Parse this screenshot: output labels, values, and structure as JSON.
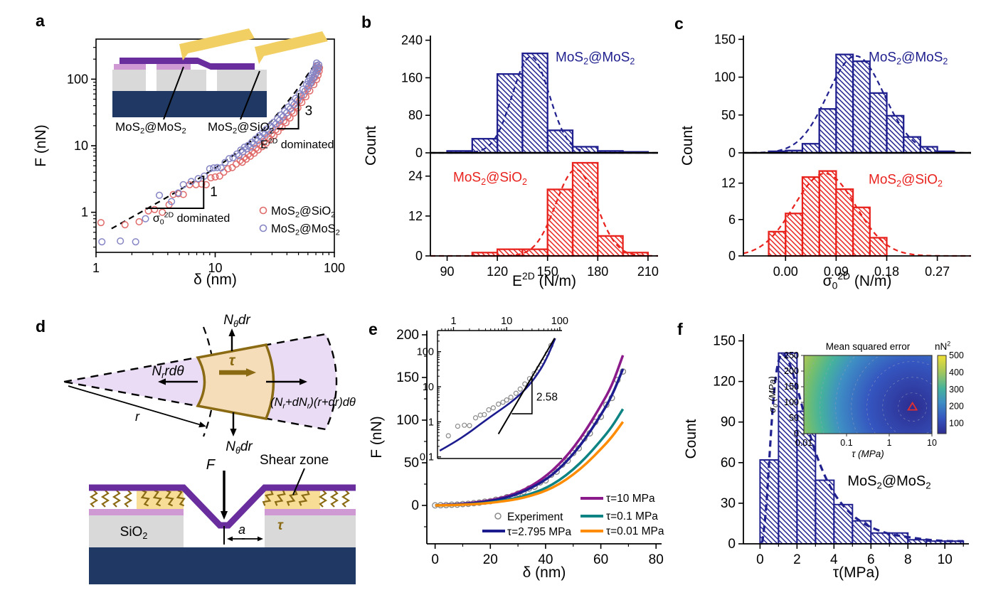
{
  "panels": {
    "a": {
      "label": "a"
    },
    "b": {
      "label": "b"
    },
    "c": {
      "label": "c"
    },
    "d": {
      "label": "d"
    },
    "e": {
      "label": "e"
    },
    "f": {
      "label": "f"
    }
  },
  "chart_data": {
    "a": {
      "type": "scatter",
      "xscale": "log",
      "yscale": "log",
      "xlabel": "δ (nm)",
      "ylabel": "F (nN)",
      "xlim": [
        1,
        100
      ],
      "ylim": [
        0.25,
        400
      ],
      "xticks": [
        1,
        10,
        100
      ],
      "yticks": [
        1,
        10,
        100
      ],
      "series": [
        {
          "name": "MoS_{2}@SiO_{2}",
          "color": "#e06a6a",
          "points": [
            [
              1.1,
              0.7
            ],
            [
              1.75,
              0.65
            ],
            [
              2.3,
              0.72
            ],
            [
              2.75,
              1.05
            ],
            [
              3.1,
              1.1
            ],
            [
              3.6,
              1.0
            ],
            [
              4.1,
              1.3
            ],
            [
              4.45,
              1.85
            ],
            [
              4.9,
              1.9
            ],
            [
              5.4,
              1.85
            ],
            [
              6.1,
              2.6
            ],
            [
              6.9,
              2.6
            ],
            [
              7.7,
              2.65
            ],
            [
              8.4,
              2.6
            ],
            [
              9.2,
              3.3
            ],
            [
              10,
              3.4
            ],
            [
              10.9,
              3.5
            ],
            [
              11.8,
              4.0
            ],
            [
              12.8,
              4.5
            ],
            [
              13.9,
              4.7
            ],
            [
              15,
              5.3
            ],
            [
              16.2,
              6.0
            ],
            [
              17.5,
              6.7
            ],
            [
              18.9,
              7.4
            ],
            [
              20.4,
              8.2
            ],
            [
              22,
              9.2
            ],
            [
              23.8,
              10.3
            ],
            [
              25.7,
              11.6
            ],
            [
              27.7,
              13.2
            ],
            [
              29.9,
              15.1
            ],
            [
              32.3,
              17.4
            ],
            [
              34.9,
              20.2
            ],
            [
              37.7,
              23.6
            ],
            [
              40.7,
              27.8
            ],
            [
              43.9,
              33
            ],
            [
              47.4,
              39.5
            ],
            [
              51.2,
              47.6
            ],
            [
              55.3,
              57.9
            ],
            [
              59.7,
              71
            ],
            [
              64.5,
              88
            ],
            [
              68,
              105
            ],
            [
              70,
              122
            ],
            [
              71.5,
              140
            ],
            [
              72,
              158
            ]
          ]
        },
        {
          "name": "MoS_{2}@MoS_{2}",
          "color": "#8585c5",
          "points": [
            [
              1.12,
              0.36
            ],
            [
              1.6,
              0.37
            ],
            [
              2.15,
              0.36
            ],
            [
              2.6,
              0.8
            ],
            [
              3.4,
              1.8
            ],
            [
              4.3,
              1.45
            ],
            [
              4.9,
              1.95
            ],
            [
              5.4,
              2.6
            ],
            [
              6.3,
              2.9
            ],
            [
              7.2,
              3.2
            ],
            [
              8.1,
              3.5
            ],
            [
              9,
              4.5
            ],
            [
              9.7,
              4.65
            ],
            [
              10.4,
              4.7
            ],
            [
              11.2,
              4.65
            ],
            [
              12.1,
              5.6
            ],
            [
              13.1,
              6.4
            ],
            [
              14.1,
              6.6
            ],
            [
              15.2,
              7.5
            ],
            [
              16.4,
              8.6
            ],
            [
              17.6,
              9.5
            ],
            [
              18.9,
              10.1
            ],
            [
              20.3,
              11.3
            ],
            [
              21.8,
              12.6
            ],
            [
              23.4,
              14.1
            ],
            [
              25.1,
              15.8
            ],
            [
              26.9,
              17.7
            ],
            [
              28.9,
              19.9
            ],
            [
              31,
              22.5
            ],
            [
              33.3,
              25.5
            ],
            [
              35.7,
              29
            ],
            [
              38.3,
              33.2
            ],
            [
              41.1,
              38.2
            ],
            [
              44.1,
              44.2
            ],
            [
              47.3,
              51.4
            ],
            [
              50.8,
              60.1
            ],
            [
              54.5,
              70.7
            ],
            [
              58.5,
              83.5
            ],
            [
              60.4,
              93
            ],
            [
              62.5,
              103
            ],
            [
              64.7,
              115
            ],
            [
              66.9,
              128
            ],
            [
              69.2,
              143
            ],
            [
              70.5,
              160
            ],
            [
              71,
              175
            ]
          ]
        }
      ],
      "fit": {
        "style": "dashed",
        "a1": 0.42,
        "a3": 0.00043,
        "range": [
          1.35,
          72
        ]
      },
      "annotations": {
        "slope1": {
          "label": "1",
          "h": [
            [
              2.6,
              1.15
            ],
            [
              8,
              1.15
            ]
          ],
          "v": [
            [
              8,
              1.15
            ],
            [
              8,
              3.55
            ]
          ]
        },
        "slope3": {
          "label": "3",
          "h": [
            [
              33,
              18
            ],
            [
              50,
              18
            ]
          ],
          "v": [
            [
              50,
              18
            ],
            [
              50,
              62
            ]
          ]
        },
        "sigma_label": {
          "text": "σ_{0}^{2D} dominated",
          "x": 3.0,
          "y": 0.72
        },
        "e_label": {
          "text": "E^{2D} dominated",
          "x": 24,
          "y": 9.2
        }
      },
      "inset_labels": {
        "left": "MoS_{2}@MoS_{2}",
        "right": "MoS_{2}@SiO_{2}"
      },
      "inset_colors": {
        "substrate": "#1f3864",
        "sio2": "#d9d9d9",
        "mos2_top": "#6a2d9e",
        "mos2_bottom": "#cf9ad4",
        "cantilever": "#f2cf63"
      }
    },
    "b": {
      "type": "histogram-pair",
      "xlabel": "E^{2D} (N/m)",
      "ylabel": "Count",
      "xlim": [
        80,
        216
      ],
      "xticks": {
        "values": [
          90,
          120,
          150,
          180,
          210
        ],
        "labels": [
          "90",
          "120",
          "150",
          "180",
          "210"
        ]
      },
      "top": {
        "name": "MoS_{2}@MoS_{2}",
        "color": "#20208f",
        "bin_start": 90,
        "bin_width": 15,
        "counts": [
          4,
          30,
          168,
          212,
          48,
          13,
          4,
          2
        ],
        "ylim": [
          0,
          250
        ],
        "yticks": [
          0,
          80,
          160,
          240
        ],
        "gauss": {
          "mu": 140,
          "sigma": 11,
          "amp": 205
        }
      },
      "bottom": {
        "name": "MoS_{2}@SiO_{2}",
        "color": "#e8231e",
        "bin_start": 105,
        "bin_width": 15,
        "counts": [
          1,
          2,
          2,
          20,
          28,
          6,
          1
        ],
        "ylim": [
          0,
          31
        ],
        "yticks": [
          0,
          12,
          24
        ],
        "gauss": {
          "mu": 167,
          "sigma": 12,
          "amp": 26
        }
      }
    },
    "c": {
      "type": "histogram-pair",
      "xlabel": "σ_{0}^{2D} (N/m)",
      "ylabel": "Count",
      "xlim": [
        -0.075,
        0.33
      ],
      "xticks": {
        "values": [
          0,
          0.09,
          0.18,
          0.27
        ],
        "labels": [
          "0.00",
          "0.09",
          "0.18",
          "0.27"
        ]
      },
      "top": {
        "name": "MoS_{2}@MoS_{2}",
        "color": "#20208f",
        "bin_start": -0.03,
        "bin_width": 0.03,
        "counts": [
          2,
          3,
          12,
          58,
          130,
          121,
          79,
          49,
          21,
          8,
          2
        ],
        "ylim": [
          0,
          155
        ],
        "yticks": [
          0,
          50,
          100,
          150
        ],
        "gauss": {
          "mu": 0.125,
          "sigma": 0.05,
          "amp": 128
        }
      },
      "bottom": {
        "name": "MoS_{2}@SiO_{2}",
        "color": "#e8231e",
        "bin_start": -0.03,
        "bin_width": 0.03,
        "counts": [
          4,
          7,
          13,
          14,
          11,
          8,
          3
        ],
        "ylim": [
          0,
          17
        ],
        "yticks": [
          0,
          6,
          12
        ],
        "gauss": {
          "mu": 0.07,
          "sigma": 0.055,
          "amp": 13.6
        }
      }
    },
    "e": {
      "type": "line-scatter",
      "xlabel": "δ (nm)",
      "ylabel": "F (nN)",
      "xlim": [
        -3,
        82
      ],
      "ylim": [
        -45,
        205
      ],
      "xticks": [
        0,
        20,
        40,
        60,
        80
      ],
      "yticks": [
        0,
        50,
        100,
        150,
        200
      ],
      "curve_x": [
        0,
        5,
        10,
        15,
        20,
        25,
        30,
        35,
        40,
        45,
        50,
        55,
        60,
        64,
        68
      ],
      "curves": [
        {
          "name": "τ=10 MPa",
          "color": "#8b1a8b",
          "y": [
            0,
            0.8,
            2,
            3.7,
            6,
            9.5,
            15,
            23,
            34,
            48.5,
            67,
            90,
            117,
            140,
            176
          ]
        },
        {
          "name": "τ=2.795 MPa",
          "color": "#1c1c8f",
          "y": [
            0,
            0.6,
            1.5,
            3,
            5.2,
            8.4,
            13.5,
            20.8,
            30,
            43,
            60,
            81,
            106,
            128,
            160
          ]
        },
        {
          "name": "τ=0.1 MPa",
          "color": "#0e8383",
          "y": [
            0,
            0.4,
            1,
            2,
            3.5,
            5.9,
            9,
            14,
            20,
            29.5,
            42,
            57.5,
            76,
            92,
            113
          ]
        },
        {
          "name": "τ=0.01 MPa",
          "color": "#ff8c00",
          "y": [
            0,
            0.3,
            0.8,
            1.6,
            3,
            5,
            7.5,
            11.6,
            17,
            25,
            36,
            49.5,
            66,
            80,
            98
          ]
        }
      ],
      "experiment": {
        "name": "Experiment",
        "color": "#8a8a8a",
        "x": [
          0,
          2,
          4,
          6,
          8,
          10,
          12,
          14,
          16,
          18,
          20,
          22,
          24,
          26,
          28,
          30,
          32,
          34,
          36,
          38,
          40,
          42,
          44,
          46,
          48,
          50,
          52,
          54,
          56,
          58,
          60,
          62,
          64,
          66,
          68
        ],
        "y": [
          0.1,
          0.3,
          0.4,
          0.8,
          0.9,
          1.6,
          1.9,
          2.7,
          3.3,
          4.4,
          5,
          6.7,
          7.6,
          9.7,
          11.1,
          13.9,
          16,
          19.8,
          22,
          27,
          29.4,
          36,
          39.6,
          47.9,
          52.5,
          61.5,
          67,
          78.5,
          84.5,
          98,
          104,
          118,
          126,
          147,
          157
        ]
      },
      "inset": {
        "xlim": [
          0.5,
          110
        ],
        "ylim": [
          0.09,
          400
        ],
        "xticks": [
          1,
          10,
          100
        ],
        "yticks": [
          0.1,
          1,
          10,
          100
        ],
        "slope_label": "2.58",
        "fit_color": "#1c1c8f",
        "fit": [
          [
            0.55,
            0.15
          ],
          [
            1,
            0.25
          ],
          [
            2,
            0.5
          ],
          [
            3,
            0.8
          ],
          [
            5,
            1.4
          ],
          [
            8,
            2.3
          ],
          [
            12,
            3.6
          ],
          [
            17,
            5.6
          ],
          [
            23,
            8.8
          ],
          [
            30,
            14
          ],
          [
            38,
            23
          ],
          [
            47,
            38
          ],
          [
            57,
            67
          ],
          [
            66,
            110
          ],
          [
            75,
            175
          ],
          [
            82,
            240
          ]
        ],
        "tangent": [
          [
            7,
            0.45
          ],
          [
            80,
            242
          ]
        ],
        "triangle": {
          "h": [
            [
              12.5,
              1.7
            ],
            [
              30,
              1.7
            ]
          ],
          "v": [
            [
              30,
              1.7
            ],
            [
              30,
              19
            ]
          ]
        },
        "scatter_x": [
          0.8,
          1.2,
          1.6,
          2.0,
          2.6,
          3.2,
          3.8,
          4.6,
          5.6,
          7,
          8.5,
          10,
          12,
          15,
          18,
          22,
          27,
          33,
          40,
          48,
          58,
          68
        ],
        "scatter_y": [
          0.4,
          0.75,
          0.8,
          0.78,
          1.3,
          1.55,
          1.6,
          2.2,
          2.5,
          3.2,
          3.6,
          4.2,
          5,
          6.5,
          8.6,
          12,
          17,
          24,
          34,
          52,
          88,
          150
        ]
      }
    },
    "f": {
      "type": "histogram",
      "xlabel": "τ(MPa)",
      "ylabel": "Count",
      "xlim": [
        -0.9,
        11.3
      ],
      "ylim": [
        0,
        155
      ],
      "xticks": [
        0,
        2,
        4,
        6,
        8,
        10
      ],
      "yticks": [
        0,
        30,
        60,
        90,
        120,
        150
      ],
      "color": "#20208f",
      "bin_start": 0,
      "bin_width": 1,
      "counts": [
        62,
        141,
        98,
        47,
        29,
        17,
        8,
        8,
        3,
        2,
        2
      ],
      "fit_curve": {
        "x": [
          0.12,
          0.3,
          0.5,
          0.7,
          0.9,
          1.1,
          1.3,
          1.6,
          2.0,
          2.5,
          3.0,
          3.5,
          4.0,
          4.5,
          5.0,
          5.5,
          6.0,
          7.0,
          8.0,
          9.0,
          10.0,
          11.0
        ],
        "y": [
          1,
          18,
          62,
          105,
          130,
          140,
          141,
          134,
          116,
          90,
          67,
          50,
          37,
          28,
          21,
          16,
          12,
          7,
          5,
          3,
          2,
          2
        ]
      },
      "label": "MoS_{2}@MoS_{2}",
      "inset": {
        "title": "Mean squared error",
        "colorbar_label": "nN^{2}",
        "colorbar_ticks": [
          "500",
          "400",
          "300",
          "200",
          "100"
        ],
        "xlabel": "τ (MPa)",
        "ylabel": "σ_{0} (MPa)",
        "xtick_labels": [
          "0.01",
          "0.1",
          "1",
          "10"
        ],
        "ytick_labels": [
          "0",
          "50",
          "100",
          "150",
          "200",
          "250"
        ],
        "marker": {
          "tau": 3.5,
          "sigma0": 85,
          "color": "#e03030"
        }
      }
    }
  },
  "panel_d": {
    "labels": {
      "n_theta_top": "N_{θ}dr",
      "n_r": "N_{r}rdθ",
      "tau_wedge": "τ",
      "n_r_plus": "(N_{r}+dN_{r})(r+dr)dθ",
      "r": "r",
      "n_theta_bottom": "N_{θ}dr",
      "force": "F",
      "shear_zone": "Shear zone",
      "sio2": "SiO_{2}",
      "a": "a",
      "tau_bottom": "τ"
    },
    "colors": {
      "wedge": "#eadcf5",
      "element": "#f6ddba",
      "olive": "#8a6a12",
      "membrane": "#6a2d9e",
      "pink": "#cf9ad4",
      "sio2": "#d9d9d9",
      "substrate": "#1f3864",
      "shear_yellow": "#f7dd96"
    }
  }
}
